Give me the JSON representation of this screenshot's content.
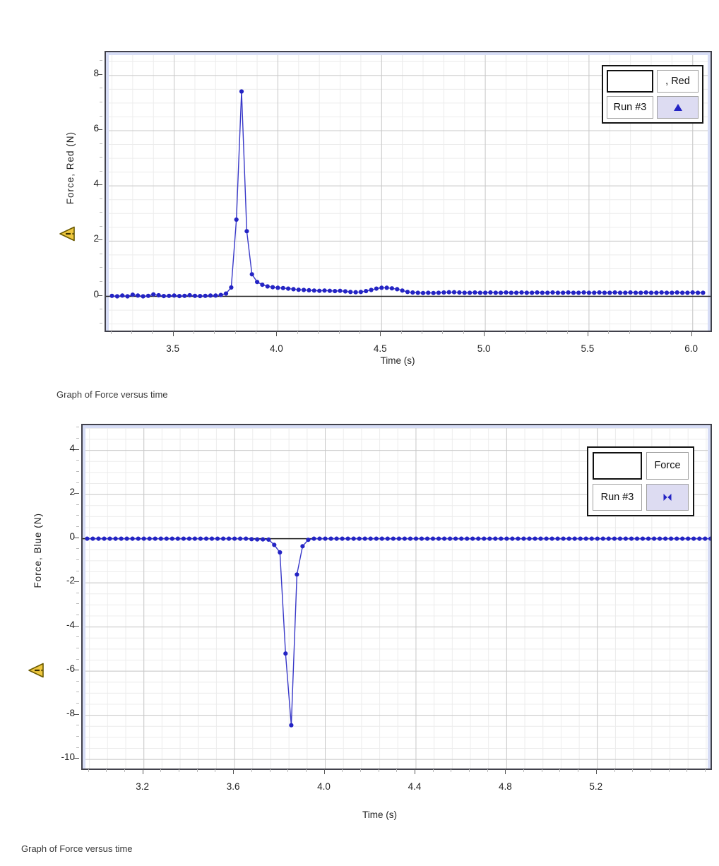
{
  "captions": {
    "top": "Graph of Force versus time",
    "bottom": "Graph of Force versus time"
  },
  "colors": {
    "series_line": "#3838c8",
    "series_marker": "#2424c4",
    "grid_minor": "#ececec",
    "grid_major": "#c8c8c8",
    "zero_line": "#1c1c1c",
    "plot_border": "#41414b",
    "edge_stripe": "#d7ddf6",
    "legend_marker_bg": "#dddcf2",
    "warning_fill": "#eec73f",
    "warning_outline": "#6b5a00"
  },
  "charts": [
    {
      "name": "force-red-chart",
      "y_axis_title": "Force, Red (N)",
      "x_axis_title": "Time (s)",
      "warning_icon": "warning-triangle-icon",
      "legend": {
        "series_label": ", Red",
        "run_label": "Run #3",
        "marker_icon": "triangle-up-marker-icon"
      },
      "chart_data": {
        "type": "line",
        "title": "",
        "xlabel": "Time (s)",
        "ylabel": "Force, Red (N)",
        "series_name": "Run #3",
        "xlim": [
          3.171,
          6.086
        ],
        "ylim": [
          -1.24,
          8.84
        ],
        "x_tick_values": [
          3.5,
          4.0,
          4.5,
          5.0,
          5.5,
          6.0
        ],
        "x_tick_labels": [
          "3.5",
          "4.0",
          "4.5",
          "5.0",
          "5.5",
          "6.0"
        ],
        "y_tick_values": [
          0,
          2,
          4,
          6,
          8
        ],
        "y_tick_labels": [
          "0",
          "2",
          "4",
          "6",
          "8"
        ],
        "x_minor_step": 0.1,
        "y_minor_step": 0.5,
        "grid": true,
        "legend_position": "top-right",
        "peak": {
          "t": 3.825,
          "force": 7.42
        },
        "points": [
          [
            3.2,
            0.02
          ],
          [
            3.225,
            0
          ],
          [
            3.25,
            0.03
          ],
          [
            3.275,
            0
          ],
          [
            3.3,
            0.06
          ],
          [
            3.325,
            0.03
          ],
          [
            3.35,
            0
          ],
          [
            3.375,
            0.02
          ],
          [
            3.4,
            0.07
          ],
          [
            3.425,
            0.04
          ],
          [
            3.45,
            0.01
          ],
          [
            3.475,
            0.02
          ],
          [
            3.5,
            0.03
          ],
          [
            3.525,
            0.01
          ],
          [
            3.55,
            0.02
          ],
          [
            3.575,
            0.04
          ],
          [
            3.6,
            0.02
          ],
          [
            3.625,
            0.01
          ],
          [
            3.65,
            0.02
          ],
          [
            3.675,
            0.03
          ],
          [
            3.7,
            0.03
          ],
          [
            3.725,
            0.05
          ],
          [
            3.75,
            0.1
          ],
          [
            3.775,
            0.32
          ],
          [
            3.8,
            2.78
          ],
          [
            3.825,
            7.42
          ],
          [
            3.85,
            2.36
          ],
          [
            3.875,
            0.8
          ],
          [
            3.9,
            0.52
          ],
          [
            3.925,
            0.42
          ],
          [
            3.95,
            0.36
          ],
          [
            3.975,
            0.33
          ],
          [
            4,
            0.31
          ],
          [
            4.025,
            0.3
          ],
          [
            4.05,
            0.28
          ],
          [
            4.075,
            0.26
          ],
          [
            4.1,
            0.24
          ],
          [
            4.125,
            0.23
          ],
          [
            4.15,
            0.22
          ],
          [
            4.175,
            0.21
          ],
          [
            4.2,
            0.2
          ],
          [
            4.225,
            0.21
          ],
          [
            4.25,
            0.2
          ],
          [
            4.275,
            0.19
          ],
          [
            4.3,
            0.2
          ],
          [
            4.325,
            0.18
          ],
          [
            4.35,
            0.16
          ],
          [
            4.375,
            0.15
          ],
          [
            4.4,
            0.16
          ],
          [
            4.425,
            0.19
          ],
          [
            4.45,
            0.23
          ],
          [
            4.475,
            0.28
          ],
          [
            4.5,
            0.31
          ],
          [
            4.525,
            0.31
          ],
          [
            4.55,
            0.29
          ],
          [
            4.575,
            0.26
          ],
          [
            4.6,
            0.21
          ],
          [
            4.625,
            0.16
          ],
          [
            4.65,
            0.14
          ],
          [
            4.675,
            0.13
          ],
          [
            4.7,
            0.12
          ],
          [
            4.725,
            0.13
          ],
          [
            4.75,
            0.12
          ],
          [
            4.775,
            0.13
          ],
          [
            4.8,
            0.14
          ],
          [
            4.825,
            0.15
          ],
          [
            4.85,
            0.15
          ],
          [
            4.875,
            0.14
          ],
          [
            4.9,
            0.13
          ],
          [
            4.925,
            0.13
          ],
          [
            4.95,
            0.14
          ],
          [
            4.975,
            0.13
          ],
          [
            5,
            0.13
          ],
          [
            5.025,
            0.14
          ],
          [
            5.05,
            0.13
          ],
          [
            5.075,
            0.13
          ],
          [
            5.1,
            0.14
          ],
          [
            5.125,
            0.13
          ],
          [
            5.15,
            0.13
          ],
          [
            5.175,
            0.14
          ],
          [
            5.2,
            0.13
          ],
          [
            5.225,
            0.13
          ],
          [
            5.25,
            0.14
          ],
          [
            5.275,
            0.13
          ],
          [
            5.3,
            0.13
          ],
          [
            5.325,
            0.14
          ],
          [
            5.35,
            0.13
          ],
          [
            5.375,
            0.13
          ],
          [
            5.4,
            0.14
          ],
          [
            5.425,
            0.13
          ],
          [
            5.45,
            0.13
          ],
          [
            5.475,
            0.14
          ],
          [
            5.5,
            0.13
          ],
          [
            5.525,
            0.13
          ],
          [
            5.55,
            0.14
          ],
          [
            5.575,
            0.13
          ],
          [
            5.6,
            0.13
          ],
          [
            5.625,
            0.14
          ],
          [
            5.65,
            0.13
          ],
          [
            5.675,
            0.13
          ],
          [
            5.7,
            0.14
          ],
          [
            5.725,
            0.13
          ],
          [
            5.75,
            0.13
          ],
          [
            5.775,
            0.14
          ],
          [
            5.8,
            0.13
          ],
          [
            5.825,
            0.13
          ],
          [
            5.85,
            0.14
          ],
          [
            5.875,
            0.13
          ],
          [
            5.9,
            0.13
          ],
          [
            5.925,
            0.14
          ],
          [
            5.95,
            0.13
          ],
          [
            5.975,
            0.13
          ],
          [
            6,
            0.14
          ],
          [
            6.025,
            0.13
          ],
          [
            6.05,
            0.13
          ]
        ]
      }
    },
    {
      "name": "force-blue-chart",
      "y_axis_title": "Force, Blue (N)",
      "x_axis_title": "Time (s)",
      "warning_icon": "warning-triangle-icon",
      "legend": {
        "series_label": "Force",
        "run_label": "Run #3",
        "marker_icon": "bowtie-marker-icon"
      },
      "chart_data": {
        "type": "line",
        "title": "",
        "xlabel": "Time (s)",
        "ylabel": "Force, Blue (N)",
        "series_name": "Run #3",
        "xlim": [
          2.93,
          5.699
        ],
        "ylim": [
          -10.41,
          5.14
        ],
        "x_tick_values": [
          3.2,
          3.6,
          4.0,
          4.4,
          4.8,
          5.2
        ],
        "x_tick_labels": [
          "3.2",
          "3.6",
          "4.0",
          "4.4",
          "4.8",
          "5.2"
        ],
        "y_tick_values": [
          4,
          2,
          0,
          -2,
          -4,
          -6,
          -8,
          -10
        ],
        "y_tick_labels": [
          "4",
          "2",
          "0",
          "-2",
          "-4",
          "-6",
          "-8",
          "-10"
        ],
        "x_minor_step": 0.08,
        "y_minor_step": 0.5,
        "grid": true,
        "legend_position": "top-right",
        "peak": {
          "t": 3.85,
          "force": -8.45
        },
        "points": [
          [
            2.95,
            0
          ],
          [
            2.975,
            0
          ],
          [
            3,
            0
          ],
          [
            3.025,
            0
          ],
          [
            3.05,
            0
          ],
          [
            3.075,
            0
          ],
          [
            3.1,
            0
          ],
          [
            3.125,
            0
          ],
          [
            3.15,
            0
          ],
          [
            3.175,
            0
          ],
          [
            3.2,
            0
          ],
          [
            3.225,
            0
          ],
          [
            3.25,
            0
          ],
          [
            3.275,
            0
          ],
          [
            3.3,
            0
          ],
          [
            3.325,
            0
          ],
          [
            3.35,
            0
          ],
          [
            3.375,
            0
          ],
          [
            3.4,
            0
          ],
          [
            3.425,
            0
          ],
          [
            3.45,
            0
          ],
          [
            3.475,
            0
          ],
          [
            3.5,
            0
          ],
          [
            3.525,
            0
          ],
          [
            3.55,
            0
          ],
          [
            3.575,
            0
          ],
          [
            3.6,
            0
          ],
          [
            3.625,
            0
          ],
          [
            3.65,
            0
          ],
          [
            3.675,
            -0.02
          ],
          [
            3.7,
            -0.03
          ],
          [
            3.725,
            -0.03
          ],
          [
            3.75,
            -0.04
          ],
          [
            3.775,
            -0.28
          ],
          [
            3.8,
            -0.62
          ],
          [
            3.825,
            -5.2
          ],
          [
            3.85,
            -8.45
          ],
          [
            3.875,
            -1.62
          ],
          [
            3.9,
            -0.34
          ],
          [
            3.925,
            -0.05
          ],
          [
            3.95,
            0
          ],
          [
            3.975,
            0
          ],
          [
            4,
            0
          ],
          [
            4.025,
            0
          ],
          [
            4.05,
            0
          ],
          [
            4.075,
            0
          ],
          [
            4.1,
            0
          ],
          [
            4.125,
            0
          ],
          [
            4.15,
            0
          ],
          [
            4.175,
            0
          ],
          [
            4.2,
            0
          ],
          [
            4.225,
            0
          ],
          [
            4.25,
            0
          ],
          [
            4.275,
            0
          ],
          [
            4.3,
            0
          ],
          [
            4.325,
            0
          ],
          [
            4.35,
            0
          ],
          [
            4.375,
            0
          ],
          [
            4.4,
            0
          ],
          [
            4.425,
            0
          ],
          [
            4.45,
            0
          ],
          [
            4.475,
            0
          ],
          [
            4.5,
            0
          ],
          [
            4.525,
            0
          ],
          [
            4.55,
            0
          ],
          [
            4.575,
            0
          ],
          [
            4.6,
            0
          ],
          [
            4.625,
            0
          ],
          [
            4.65,
            0
          ],
          [
            4.675,
            0
          ],
          [
            4.7,
            0
          ],
          [
            4.725,
            0
          ],
          [
            4.75,
            0
          ],
          [
            4.775,
            0
          ],
          [
            4.8,
            0
          ],
          [
            4.825,
            0
          ],
          [
            4.85,
            0
          ],
          [
            4.875,
            0
          ],
          [
            4.9,
            0
          ],
          [
            4.925,
            0
          ],
          [
            4.95,
            0
          ],
          [
            4.975,
            0
          ],
          [
            5,
            0
          ],
          [
            5.025,
            0
          ],
          [
            5.05,
            0
          ],
          [
            5.075,
            0
          ],
          [
            5.1,
            0
          ],
          [
            5.125,
            0
          ],
          [
            5.15,
            0
          ],
          [
            5.175,
            0
          ],
          [
            5.2,
            0
          ],
          [
            5.225,
            0
          ],
          [
            5.25,
            0
          ],
          [
            5.275,
            0
          ],
          [
            5.3,
            0
          ],
          [
            5.325,
            0
          ],
          [
            5.35,
            0
          ],
          [
            5.375,
            0
          ],
          [
            5.4,
            0
          ],
          [
            5.425,
            0
          ],
          [
            5.45,
            0
          ],
          [
            5.475,
            0
          ],
          [
            5.5,
            0
          ],
          [
            5.525,
            0
          ],
          [
            5.55,
            0
          ],
          [
            5.575,
            0
          ],
          [
            5.6,
            0
          ],
          [
            5.625,
            0
          ],
          [
            5.65,
            0
          ],
          [
            5.675,
            0
          ],
          [
            5.7,
            0
          ]
        ]
      }
    }
  ]
}
